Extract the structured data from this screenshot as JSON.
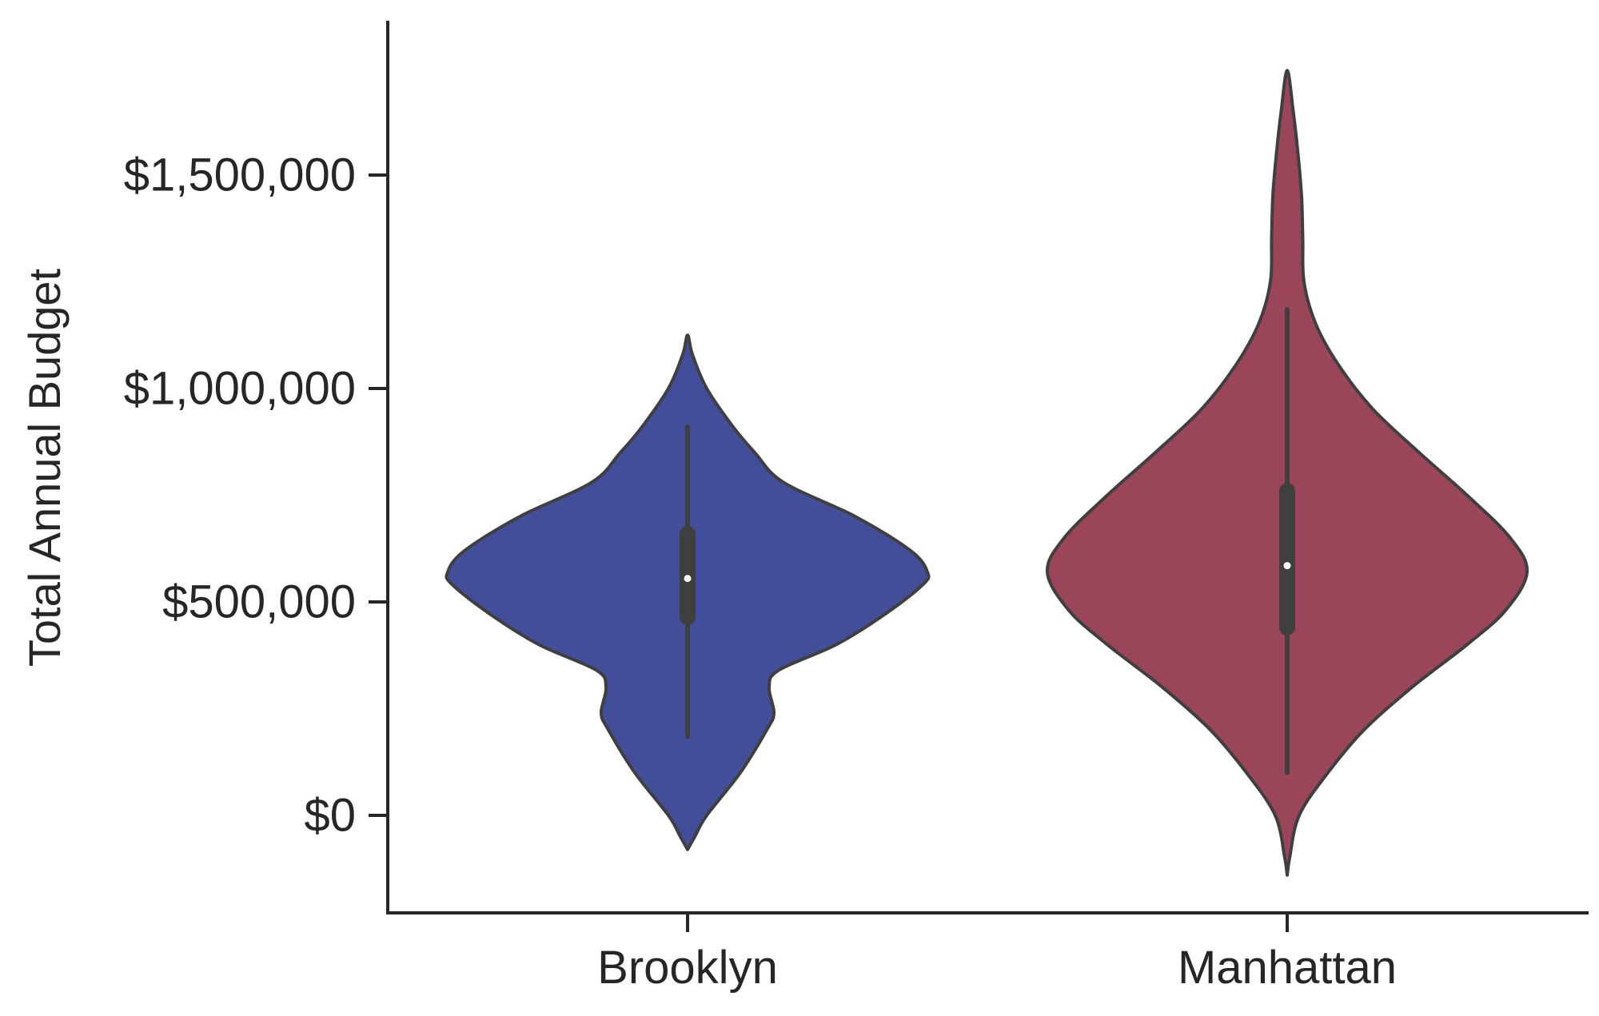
{
  "chart_data": {
    "type": "violin",
    "title": "",
    "xlabel": "",
    "ylabel": "Total Annual Budget",
    "ylim": [
      -230000,
      1860000
    ],
    "yticks": [
      {
        "value": 0,
        "label": "$0"
      },
      {
        "value": 500000,
        "label": "$500,000"
      },
      {
        "value": 1000000,
        "label": "$1,000,000"
      },
      {
        "value": 1500000,
        "label": "$1,500,000"
      }
    ],
    "grid": false,
    "categories": [
      "Brooklyn",
      "Manhattan"
    ],
    "series": [
      {
        "category": "Brooklyn",
        "color": "#434E9A",
        "whisker_low": 185000,
        "q1": 465000,
        "median": 555000,
        "q3": 660000,
        "whisker_high": 910000,
        "density": [
          [
            -80000,
            0.0
          ],
          [
            -50000,
            0.03
          ],
          [
            0,
            0.08
          ],
          [
            100000,
            0.22
          ],
          [
            200000,
            0.33
          ],
          [
            240000,
            0.36
          ],
          [
            300000,
            0.34
          ],
          [
            340000,
            0.38
          ],
          [
            400000,
            0.62
          ],
          [
            470000,
            0.82
          ],
          [
            540000,
            0.98
          ],
          [
            570000,
            1.0
          ],
          [
            620000,
            0.93
          ],
          [
            700000,
            0.7
          ],
          [
            780000,
            0.4
          ],
          [
            850000,
            0.28
          ],
          [
            910000,
            0.19
          ],
          [
            1000000,
            0.08
          ],
          [
            1080000,
            0.02
          ],
          [
            1125000,
            0.0
          ]
        ]
      },
      {
        "category": "Manhattan",
        "color": "#9B455A",
        "whisker_low": 100000,
        "q1": 440000,
        "median": 585000,
        "q3": 760000,
        "whisker_high": 1185000,
        "density": [
          [
            -140000,
            0.0
          ],
          [
            -100000,
            0.01
          ],
          [
            0,
            0.05
          ],
          [
            100000,
            0.17
          ],
          [
            200000,
            0.32
          ],
          [
            300000,
            0.52
          ],
          [
            400000,
            0.75
          ],
          [
            480000,
            0.91
          ],
          [
            570000,
            1.0
          ],
          [
            650000,
            0.93
          ],
          [
            750000,
            0.75
          ],
          [
            850000,
            0.55
          ],
          [
            950000,
            0.36
          ],
          [
            1050000,
            0.22
          ],
          [
            1150000,
            0.12
          ],
          [
            1250000,
            0.07
          ],
          [
            1350000,
            0.065
          ],
          [
            1450000,
            0.06
          ],
          [
            1550000,
            0.045
          ],
          [
            1650000,
            0.025
          ],
          [
            1745000,
            0.0
          ]
        ]
      }
    ]
  }
}
